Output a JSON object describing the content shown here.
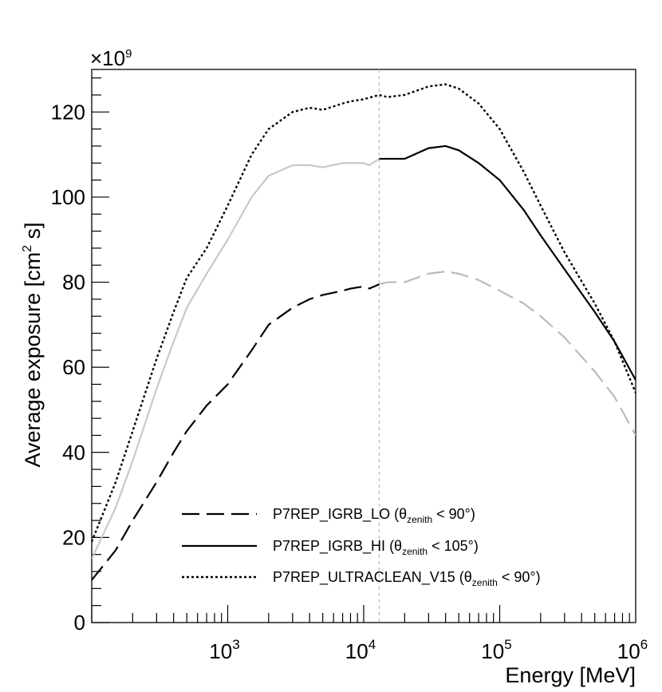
{
  "chart_data": {
    "type": "line",
    "xscale": "log",
    "xlim": [
      100,
      1000000
    ],
    "ylim": [
      0,
      130
    ],
    "y_multiplier_label": "×10",
    "y_multiplier_exponent": "9",
    "xlabel": "Energy [MeV]",
    "ylabel": {
      "prefix": "Average exposure [cm",
      "exp": "2",
      "suffix": " s]"
    },
    "x_ticks": [
      {
        "value": 1000,
        "base": "10",
        "exp": "3"
      },
      {
        "value": 10000,
        "base": "10",
        "exp": "4"
      },
      {
        "value": 100000,
        "base": "10",
        "exp": "5"
      },
      {
        "value": 1000000,
        "base": "10",
        "exp": "6"
      }
    ],
    "y_ticks": [
      {
        "value": 0,
        "label": "0"
      },
      {
        "value": 20,
        "label": "20"
      },
      {
        "value": 40,
        "label": "40"
      },
      {
        "value": 60,
        "label": "60"
      },
      {
        "value": 80,
        "label": "80"
      },
      {
        "value": 100,
        "label": "100"
      },
      {
        "value": 120,
        "label": "120"
      }
    ],
    "reference_line_x": 13000,
    "series": [
      {
        "name": "P7REP_IGRB_LO",
        "theta_sub": "zenith",
        "theta_cond": "< 90°",
        "style": "dashed",
        "split_x": 13000,
        "color_before": "#000000",
        "color_after": "#bbbbbb",
        "x": [
          100,
          150,
          200,
          300,
          400,
          500,
          700,
          1000,
          1500,
          2000,
          3000,
          4000,
          5000,
          7000,
          8000,
          10000,
          11000,
          13000,
          15000,
          20000,
          30000,
          40000,
          50000,
          70000,
          100000,
          150000,
          200000,
          300000,
          500000,
          700000,
          1000000
        ],
        "values": [
          10,
          17,
          24,
          33,
          40,
          45,
          51,
          56,
          64,
          70,
          74,
          76,
          77,
          78,
          78.5,
          79,
          78.5,
          79.5,
          80,
          80,
          82,
          82.5,
          82,
          80.5,
          78,
          75,
          72,
          67,
          59,
          53,
          44
        ]
      },
      {
        "name": "P7REP_IGRB_HI",
        "theta_sub": "zenith",
        "theta_cond": "< 105°",
        "style": "solid",
        "split_x": 13000,
        "color_before": "#c8c8c8",
        "color_after": "#000000",
        "x": [
          100,
          150,
          200,
          300,
          400,
          500,
          700,
          1000,
          1500,
          2000,
          3000,
          4000,
          5000,
          7000,
          8000,
          10000,
          11000,
          13000,
          15000,
          20000,
          30000,
          40000,
          50000,
          70000,
          100000,
          150000,
          200000,
          300000,
          500000,
          700000,
          1000000
        ],
        "values": [
          15,
          27,
          38,
          55,
          66,
          74,
          82,
          90,
          100,
          105,
          107.5,
          107.5,
          107,
          108,
          108,
          108,
          107.5,
          109,
          109,
          109,
          111.5,
          112,
          111,
          108,
          104,
          97,
          91,
          83,
          73,
          66,
          57
        ]
      },
      {
        "name": "P7REP_ULTRACLEAN_V15",
        "theta_sub": "zenith",
        "theta_cond": "< 90°",
        "style": "dotted",
        "color_before": "#000000",
        "color_after": "#000000",
        "x": [
          100,
          150,
          200,
          300,
          400,
          500,
          700,
          1000,
          1500,
          2000,
          3000,
          4000,
          5000,
          7000,
          8000,
          10000,
          13000,
          15000,
          20000,
          30000,
          40000,
          50000,
          70000,
          100000,
          150000,
          200000,
          300000,
          500000,
          700000,
          1000000
        ],
        "values": [
          19,
          33,
          45,
          62,
          73,
          81,
          88,
          98,
          110,
          116,
          120,
          121,
          120.5,
          122,
          122.5,
          123,
          124,
          123.5,
          124,
          126,
          126.5,
          125.5,
          122,
          116,
          106,
          98,
          87,
          75,
          66,
          54
        ]
      }
    ]
  }
}
